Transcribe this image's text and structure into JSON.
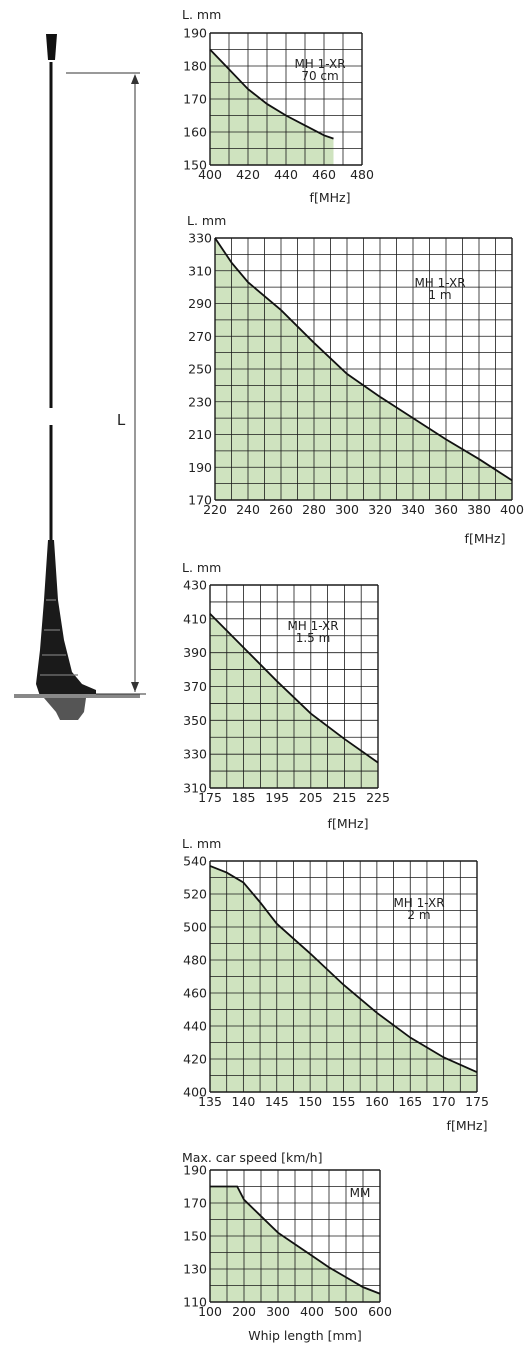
{
  "colors": {
    "fill": "#cfe3bf",
    "grid": "#1a1a1a",
    "curve": "#111111",
    "antenna": "#111111"
  },
  "antenna": {
    "dimension_label": "L"
  },
  "chart_data": [
    {
      "type": "area",
      "ylabel": "L. mm",
      "xlabel": "f[MHz]",
      "annotation": [
        "MH 1-XR",
        "70 cm"
      ],
      "xlim": [
        400,
        480
      ],
      "ylim": [
        150,
        190
      ],
      "x_ticks": [
        400,
        420,
        440,
        460,
        480
      ],
      "y_ticks": [
        150,
        160,
        170,
        180,
        190
      ],
      "grid": true,
      "x": [
        400,
        410,
        420,
        430,
        440,
        450,
        460,
        465
      ],
      "y": [
        185,
        179,
        173,
        168.5,
        165,
        162,
        159,
        158
      ]
    },
    {
      "type": "area",
      "ylabel": "L. mm",
      "xlabel": "f[MHz]",
      "annotation": [
        "MH 1-XR",
        "1 m"
      ],
      "xlim": [
        220,
        400
      ],
      "ylim": [
        170,
        330
      ],
      "x_ticks": [
        220,
        240,
        260,
        280,
        300,
        320,
        340,
        360,
        380,
        400
      ],
      "y_ticks": [
        170,
        190,
        210,
        230,
        250,
        270,
        290,
        310,
        330
      ],
      "grid": true,
      "x": [
        220,
        230,
        240,
        260,
        280,
        300,
        320,
        340,
        360,
        380,
        400
      ],
      "y": [
        330,
        315,
        303,
        286,
        266,
        247,
        233,
        220,
        207,
        195,
        182
      ]
    },
    {
      "type": "area",
      "ylabel": "L. mm",
      "xlabel": "f[MHz]",
      "annotation": [
        "MH 1-XR",
        "1.5 m"
      ],
      "xlim": [
        175,
        225
      ],
      "ylim": [
        310,
        430
      ],
      "x_ticks": [
        175,
        185,
        195,
        205,
        215,
        225
      ],
      "y_ticks": [
        310,
        330,
        350,
        370,
        390,
        410,
        430
      ],
      "grid": true,
      "x": [
        175,
        185,
        195,
        205,
        215,
        225
      ],
      "y": [
        413,
        393,
        373,
        354,
        339,
        325
      ]
    },
    {
      "type": "area",
      "ylabel": "L. mm",
      "xlabel": "f[MHz]",
      "annotation": [
        "MH 1-XR",
        "2 m"
      ],
      "xlim": [
        135,
        175
      ],
      "ylim": [
        400,
        540
      ],
      "x_ticks": [
        135,
        140,
        145,
        150,
        155,
        160,
        165,
        170,
        175
      ],
      "y_ticks": [
        400,
        420,
        440,
        460,
        480,
        500,
        520,
        540
      ],
      "grid": true,
      "x": [
        135,
        137.5,
        140,
        142.5,
        145,
        150,
        155,
        160,
        165,
        170,
        175
      ],
      "y": [
        537,
        533,
        527,
        515,
        502,
        484,
        465,
        448,
        433,
        421,
        412
      ]
    },
    {
      "type": "area",
      "ylabel": "Max. car speed [km/h]",
      "xlabel": "Whip length [mm]",
      "annotation": [
        "MM"
      ],
      "xlim": [
        100,
        600
      ],
      "ylim": [
        110,
        190
      ],
      "x_ticks": [
        100,
        200,
        300,
        400,
        500,
        600
      ],
      "y_ticks": [
        110,
        130,
        150,
        170,
        190
      ],
      "grid": true,
      "x": [
        100,
        150,
        180,
        200,
        250,
        300,
        350,
        400,
        450,
        500,
        550,
        600
      ],
      "y": [
        180,
        180,
        180,
        172,
        162,
        152,
        145,
        138,
        131,
        125,
        119,
        115
      ]
    }
  ]
}
